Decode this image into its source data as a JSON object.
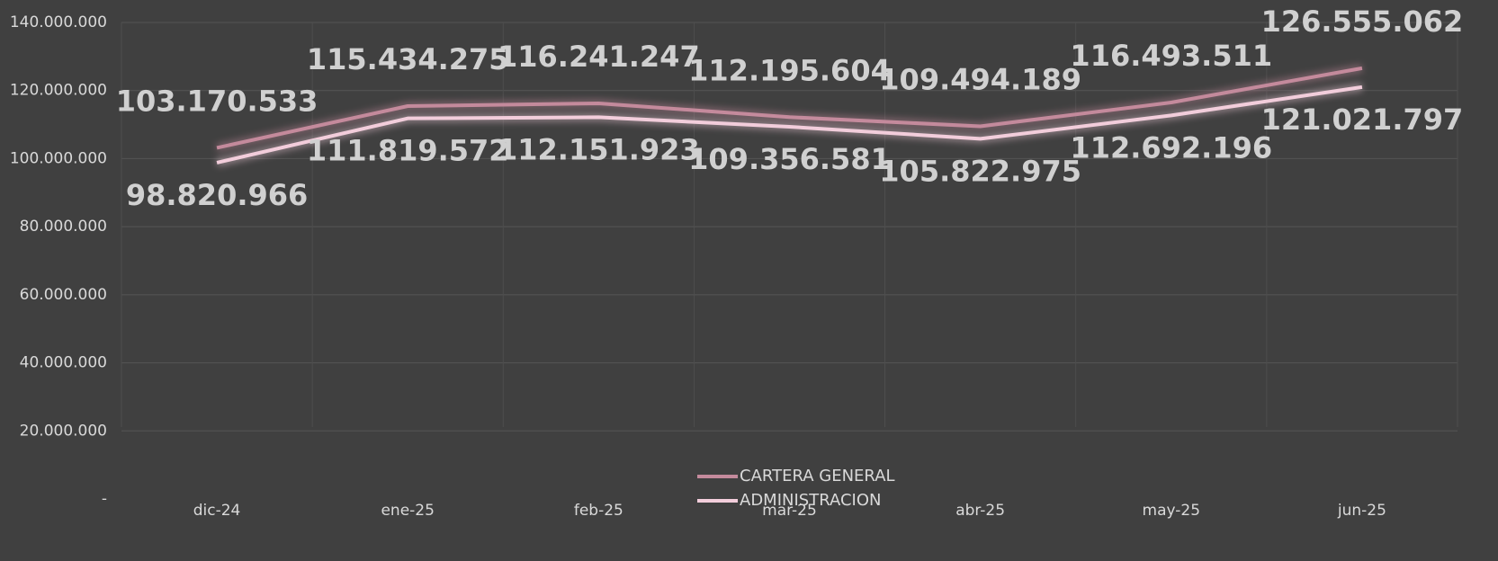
{
  "chart_data": {
    "type": "line",
    "categories": [
      "dic-24",
      "ene-25",
      "feb-25",
      "mar-25",
      "abr-25",
      "may-25",
      "jun-25"
    ],
    "series": [
      {
        "name": "CARTERA GENERAL",
        "color": "#c48a9c",
        "values": [
          103170533,
          115434275,
          116241247,
          112195604,
          109494189,
          116493511,
          126555062
        ],
        "value_labels": [
          "103.170.533",
          "115.434.275",
          "116.241.247",
          "112.195.604",
          "109.494.189",
          "116.493.511",
          "126.555.062"
        ]
      },
      {
        "name": "ADMINISTRACION",
        "color": "#f2cddb",
        "values": [
          98820966,
          111819572,
          112151923,
          109356581,
          105822975,
          112692196,
          121021797
        ],
        "value_labels": [
          "98.820.966",
          "111.819.572",
          "112.151.923",
          "109.356.581",
          "105.822.975",
          "112.692.196",
          "121.021.797"
        ]
      }
    ],
    "ylim": [
      0,
      140000000
    ],
    "yticks": [
      {
        "value": 0,
        "label": "-"
      },
      {
        "value": 20000000,
        "label": "20.000.000"
      },
      {
        "value": 40000000,
        "label": "40.000.000"
      },
      {
        "value": 60000000,
        "label": "60.000.000"
      },
      {
        "value": 80000000,
        "label": "80.000.000"
      },
      {
        "value": 100000000,
        "label": "100.000.000"
      },
      {
        "value": 120000000,
        "label": "120.000.000"
      },
      {
        "value": 140000000,
        "label": "140.000.000"
      }
    ],
    "grid": true,
    "legend": "bottom"
  }
}
